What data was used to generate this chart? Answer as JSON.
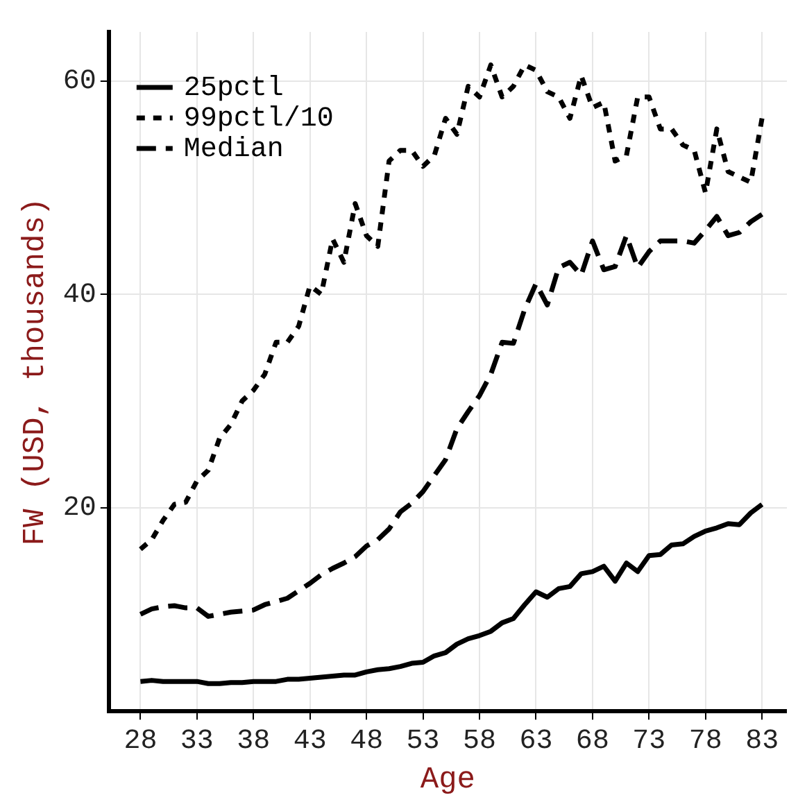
{
  "chart_data": {
    "type": "line",
    "xlabel": "Age",
    "ylabel": "FW (USD, thousands)",
    "x": [
      28,
      29,
      30,
      31,
      32,
      33,
      34,
      35,
      36,
      37,
      38,
      39,
      40,
      41,
      42,
      43,
      44,
      45,
      46,
      47,
      48,
      49,
      50,
      51,
      52,
      53,
      54,
      55,
      56,
      57,
      58,
      59,
      60,
      61,
      62,
      63,
      64,
      65,
      66,
      67,
      68,
      69,
      70,
      71,
      72,
      73,
      74,
      75,
      76,
      77,
      78,
      79,
      80,
      81,
      82,
      83
    ],
    "series": [
      {
        "name": "25pctl",
        "color": "#000000",
        "line_style": "solid",
        "values": [
          3.7,
          3.8,
          3.7,
          3.7,
          3.7,
          3.7,
          3.5,
          3.5,
          3.6,
          3.6,
          3.7,
          3.7,
          3.7,
          3.9,
          3.9,
          4.0,
          4.1,
          4.2,
          4.3,
          4.3,
          4.6,
          4.8,
          4.9,
          5.1,
          5.4,
          5.5,
          6.1,
          6.4,
          7.2,
          7.7,
          8.0,
          8.4,
          9.2,
          9.6,
          10.9,
          12.1,
          11.6,
          12.4,
          12.6,
          13.8,
          14.0,
          14.5,
          13.1,
          14.8,
          14.0,
          15.5,
          15.6,
          16.5,
          16.6,
          17.3,
          17.8,
          18.1,
          18.5,
          18.4,
          19.5,
          20.3
        ]
      },
      {
        "name": "99pctl/10",
        "color": "#000000",
        "line_style": "dotted",
        "values": [
          16.1,
          17.0,
          18.8,
          20.3,
          20.5,
          22.5,
          23.5,
          26.5,
          27.8,
          30.0,
          31.0,
          32.5,
          35.5,
          35.5,
          37.0,
          40.8,
          40.0,
          45.2,
          43.0,
          48.5,
          45.5,
          44.5,
          52.5,
          53.5,
          53.5,
          52.0,
          53.0,
          56.5,
          55.0,
          59.5,
          58.5,
          61.5,
          58.5,
          59.5,
          61.5,
          61.0,
          59.0,
          58.5,
          56.5,
          60.5,
          57.5,
          58.0,
          52.5,
          53.0,
          58.5,
          58.5,
          55.5,
          55.5,
          54.0,
          53.5,
          49.5,
          55.5,
          51.5,
          51.0,
          50.5,
          56.5
        ]
      },
      {
        "name": "Median",
        "color": "#000000",
        "line_style": "dashed",
        "values": [
          10.0,
          10.5,
          10.7,
          10.8,
          10.6,
          10.6,
          9.8,
          10.0,
          10.2,
          10.3,
          10.4,
          10.9,
          11.2,
          11.5,
          12.2,
          12.9,
          13.7,
          14.3,
          14.8,
          15.4,
          16.4,
          17.0,
          18.0,
          19.6,
          20.4,
          21.5,
          23.0,
          24.5,
          27.4,
          29.0,
          30.5,
          32.5,
          35.5,
          35.4,
          38.6,
          41.0,
          39.0,
          42.5,
          43.0,
          41.8,
          45.0,
          42.3,
          42.6,
          45.5,
          42.5,
          44.0,
          45.0,
          45.0,
          45.0,
          44.8,
          46.0,
          47.3,
          45.5,
          45.8,
          46.8,
          47.5
        ]
      }
    ],
    "xlim": [
      25.2,
      85.2
    ],
    "xticks": [
      28,
      33,
      38,
      43,
      48,
      53,
      58,
      63,
      68,
      73,
      78,
      83
    ],
    "ylim": [
      0.9,
      64.6
    ],
    "yticks": [
      20,
      40,
      60
    ],
    "grid": true,
    "legend": "top left"
  }
}
